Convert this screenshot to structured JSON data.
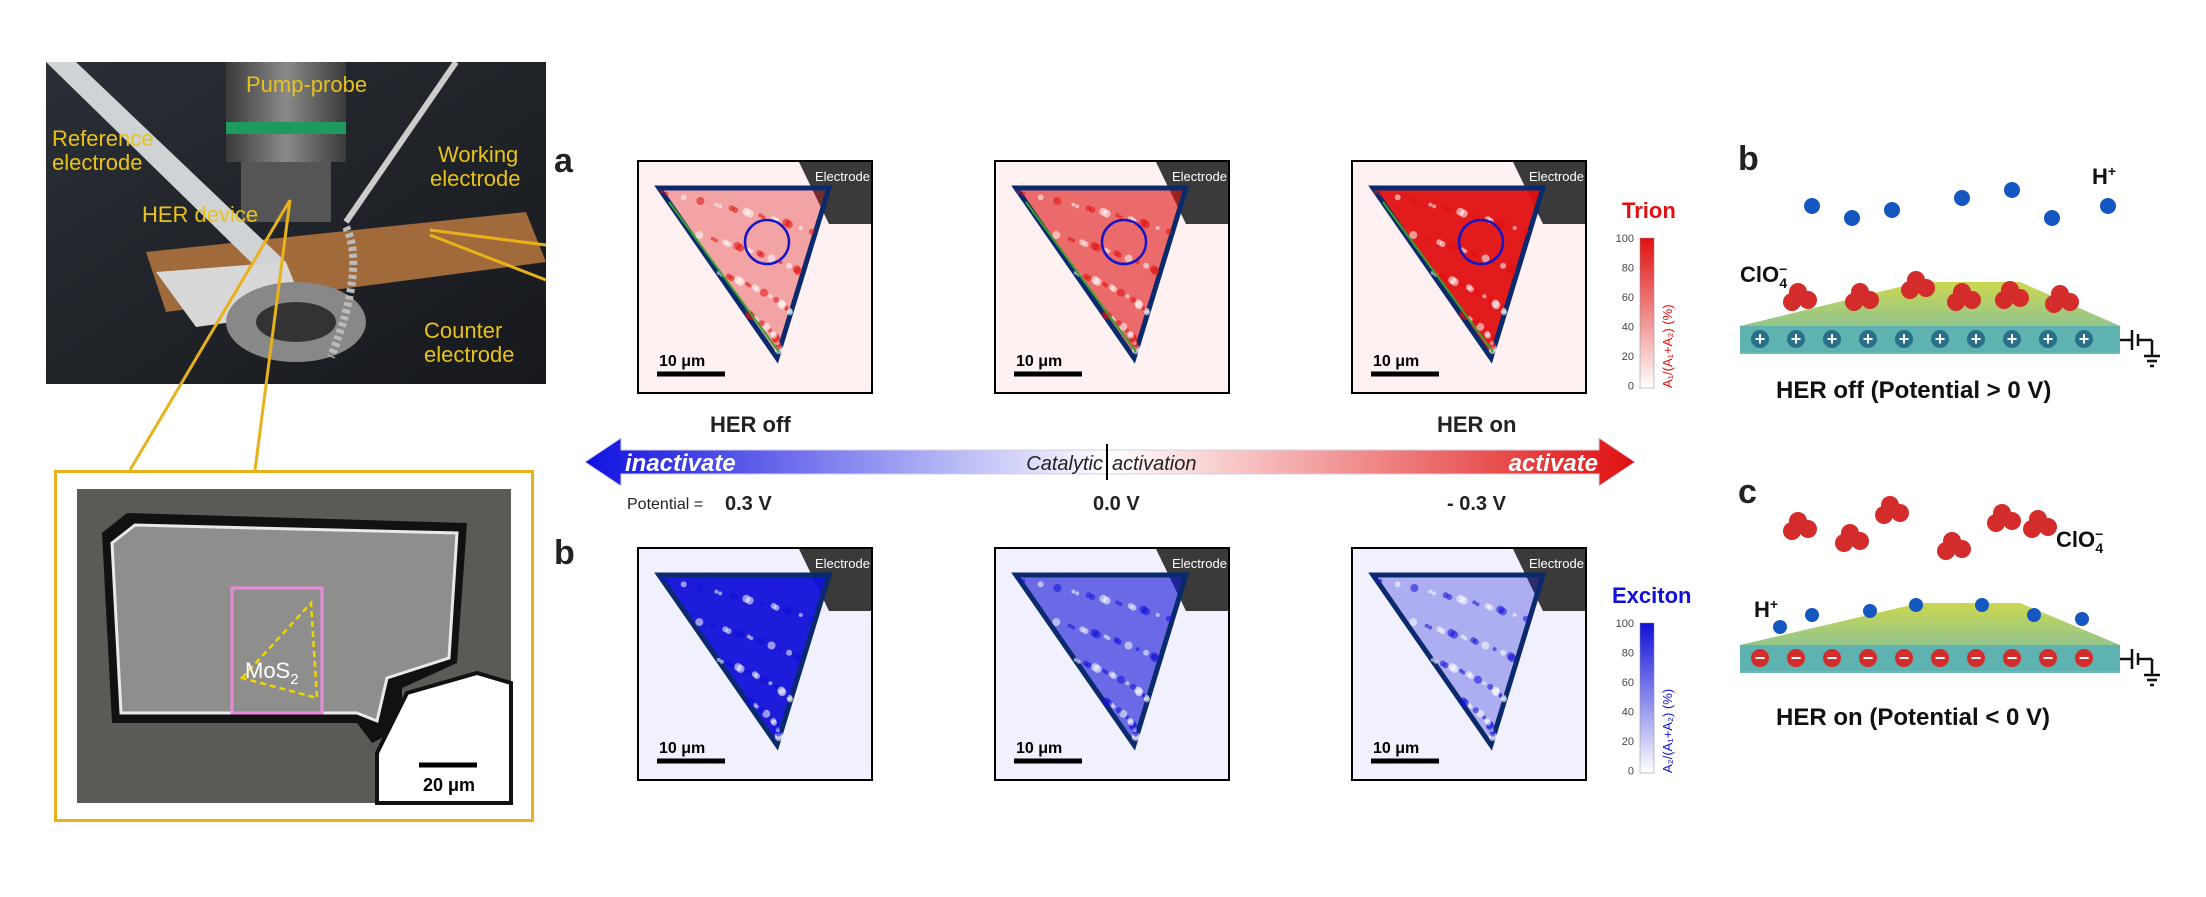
{
  "photo": {
    "pump_probe": "Pump-probe",
    "reference_line1": "Reference",
    "reference_line2": "electrode",
    "working_line1": "Working",
    "working_line2": "electrode",
    "her_device": "HER device",
    "counter_line1": "Counter",
    "counter_line2": "electrode"
  },
  "micrograph": {
    "mos2_main": "MoS",
    "mos2_sub": "2",
    "scale": "20 μm"
  },
  "panel_a": {
    "letter": "a",
    "maps": [
      {
        "electrode": "Electrode",
        "scale": "10 μm",
        "fill_opacity": 0.35
      },
      {
        "electrode": "Electrode",
        "scale": "10 μm",
        "fill_opacity": 0.6
      },
      {
        "electrode": "Electrode",
        "scale": "10 μm",
        "fill_opacity": 0.95
      }
    ],
    "colorbar_title": "Trion",
    "colorbar_label": "A₁/(A₁+A₂) (%)",
    "ticks": [
      "100",
      "80",
      "60",
      "40",
      "20",
      "0"
    ],
    "accent": "#e01010"
  },
  "panel_b": {
    "letter": "b",
    "maps": [
      {
        "electrode": "Electrode",
        "scale": "10 μm",
        "fill_opacity": 0.95
      },
      {
        "electrode": "Electrode",
        "scale": "10 μm",
        "fill_opacity": 0.6
      },
      {
        "electrode": "Electrode",
        "scale": "10 μm",
        "fill_opacity": 0.3
      }
    ],
    "colorbar_title": "Exciton",
    "colorbar_label": "A₂/(A₁+A₂) (%)",
    "ticks": [
      "100",
      "80",
      "60",
      "40",
      "20",
      "0"
    ],
    "accent": "#1010d8"
  },
  "arrow": {
    "her_off": "HER off",
    "her_on": "HER on",
    "inactivate": "inactivate",
    "catalytic": "Catalytic",
    "activation": "activation",
    "activate": "activate",
    "potential_label": "Potential =",
    "potentials": [
      "0.3 V",
      "0.0 V",
      "- 0.3 V"
    ]
  },
  "schematic_b": {
    "letter": "b",
    "h_plus": "H",
    "clo4": "ClO",
    "caption": "HER off (Potential > 0 V)"
  },
  "schematic_c": {
    "letter": "c",
    "h_plus": "H",
    "clo4": "ClO",
    "caption": "HER on (Potential < 0 V)"
  }
}
